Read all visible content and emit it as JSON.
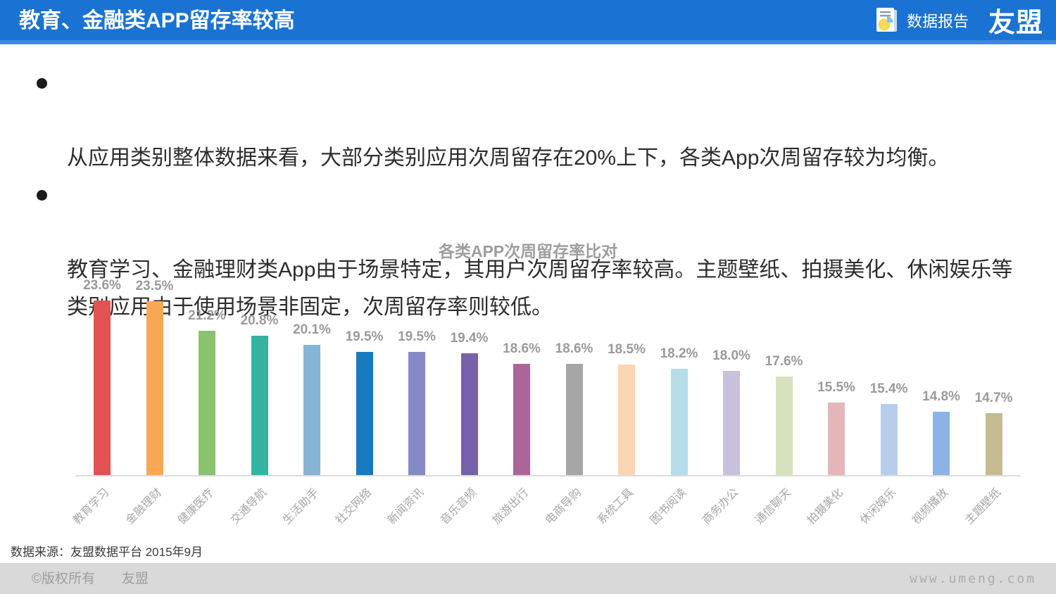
{
  "header": {
    "title": "教育、金融类APP留存率较高",
    "report_label": "数据报告",
    "logo": "友盟",
    "bg_color": "#1a73d2"
  },
  "bullets": {
    "item1": "从应用类别整体数据来看，大部分类别应用次周留存在20%上下，各类App次周留存较为均衡。",
    "item2": "教育学习、金融理财类App由于场景特定，其用户次周留存率较高。主题壁纸、拍摄美化、休闲娱乐等\n类别应用由于使用场景非固定，次周留存率则较低。"
  },
  "chart_data": {
    "type": "bar",
    "title": "各类APP次周留存率比对",
    "categories": [
      "教育学习",
      "金融理财",
      "健康医疗",
      "交通导航",
      "生活助手",
      "社交网络",
      "新闻资讯",
      "音乐音频",
      "旅游出行",
      "电商导购",
      "系统工具",
      "图书阅读",
      "商务办公",
      "通信聊天",
      "拍摄美化",
      "休闲娱乐",
      "视频播放",
      "主题壁纸"
    ],
    "values": [
      23.6,
      23.5,
      21.2,
      20.8,
      20.1,
      19.5,
      19.5,
      19.4,
      18.6,
      18.6,
      18.5,
      18.2,
      18.0,
      17.6,
      15.5,
      15.4,
      14.8,
      14.7
    ],
    "labels": [
      "23.6%",
      "23.5%",
      "21.2%",
      "20.8%",
      "20.1%",
      "19.5%",
      "19.5%",
      "19.4%",
      "18.6%",
      "18.6%",
      "18.5%",
      "18.2%",
      "18.0%",
      "17.6%",
      "15.5%",
      "15.4%",
      "14.8%",
      "14.7%"
    ],
    "colors": [
      "#e05352",
      "#f8a755",
      "#8bc36c",
      "#34b3a0",
      "#86b4d6",
      "#187abe",
      "#8689c6",
      "#7662aa",
      "#ac6598",
      "#a6a6a6",
      "#fbd5b2",
      "#b5dce9",
      "#c9c0de",
      "#d6e2be",
      "#e5b6b9",
      "#b6cee9",
      "#8db2e5",
      "#c5bb93"
    ],
    "xlabel": "",
    "ylabel": "",
    "ylim": [
      9.8,
      25.4
    ],
    "grid": false,
    "legend": false,
    "value_label_color": "#9a9a9a",
    "axis_label_color": "#a6a6a6"
  },
  "source_note": "数据来源：友盟数据平台 2015年9月",
  "footer": {
    "copyright": "©版权所有　　友盟",
    "website": "www.umeng.com"
  }
}
